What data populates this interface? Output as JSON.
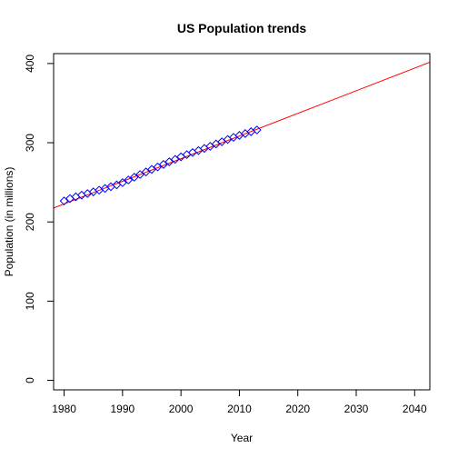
{
  "chart_data": {
    "type": "scatter",
    "title": "US Population trends",
    "xlabel": "Year",
    "ylabel": "Population (in millions)",
    "xlim": [
      1978.2,
      2042.6
    ],
    "ylim": [
      -12.0,
      412.5
    ],
    "xticks": [
      1980,
      1990,
      2000,
      2010,
      2020,
      2030,
      2040
    ],
    "yticks": [
      0,
      100,
      200,
      300,
      400
    ],
    "grid": false,
    "legend": "none",
    "series": [
      {
        "kind": "points",
        "marker": "diamond",
        "marker_color": "#0000ff",
        "x": [
          1980,
          1981,
          1982,
          1983,
          1984,
          1985,
          1986,
          1987,
          1988,
          1989,
          1990,
          1991,
          1992,
          1993,
          1994,
          1995,
          1996,
          1997,
          1998,
          1999,
          2000,
          2001,
          2002,
          2003,
          2004,
          2005,
          2006,
          2007,
          2008,
          2009,
          2010,
          2011,
          2012,
          2013
        ],
        "values": [
          226.5,
          229.5,
          231.7,
          233.8,
          235.8,
          237.9,
          240.1,
          242.3,
          244.5,
          246.8,
          249.6,
          253.0,
          256.5,
          259.9,
          263.1,
          266.3,
          269.4,
          272.6,
          275.9,
          279.0,
          282.2,
          285.0,
          287.6,
          290.1,
          292.8,
          295.5,
          298.4,
          301.2,
          304.1,
          306.8,
          309.3,
          311.6,
          313.9,
          316.1
        ]
      },
      {
        "kind": "fit-line",
        "line_color": "#ff0000",
        "x": [
          1978.2,
          2042.6
        ],
        "values": [
          217.6,
          401.6
        ]
      }
    ]
  }
}
